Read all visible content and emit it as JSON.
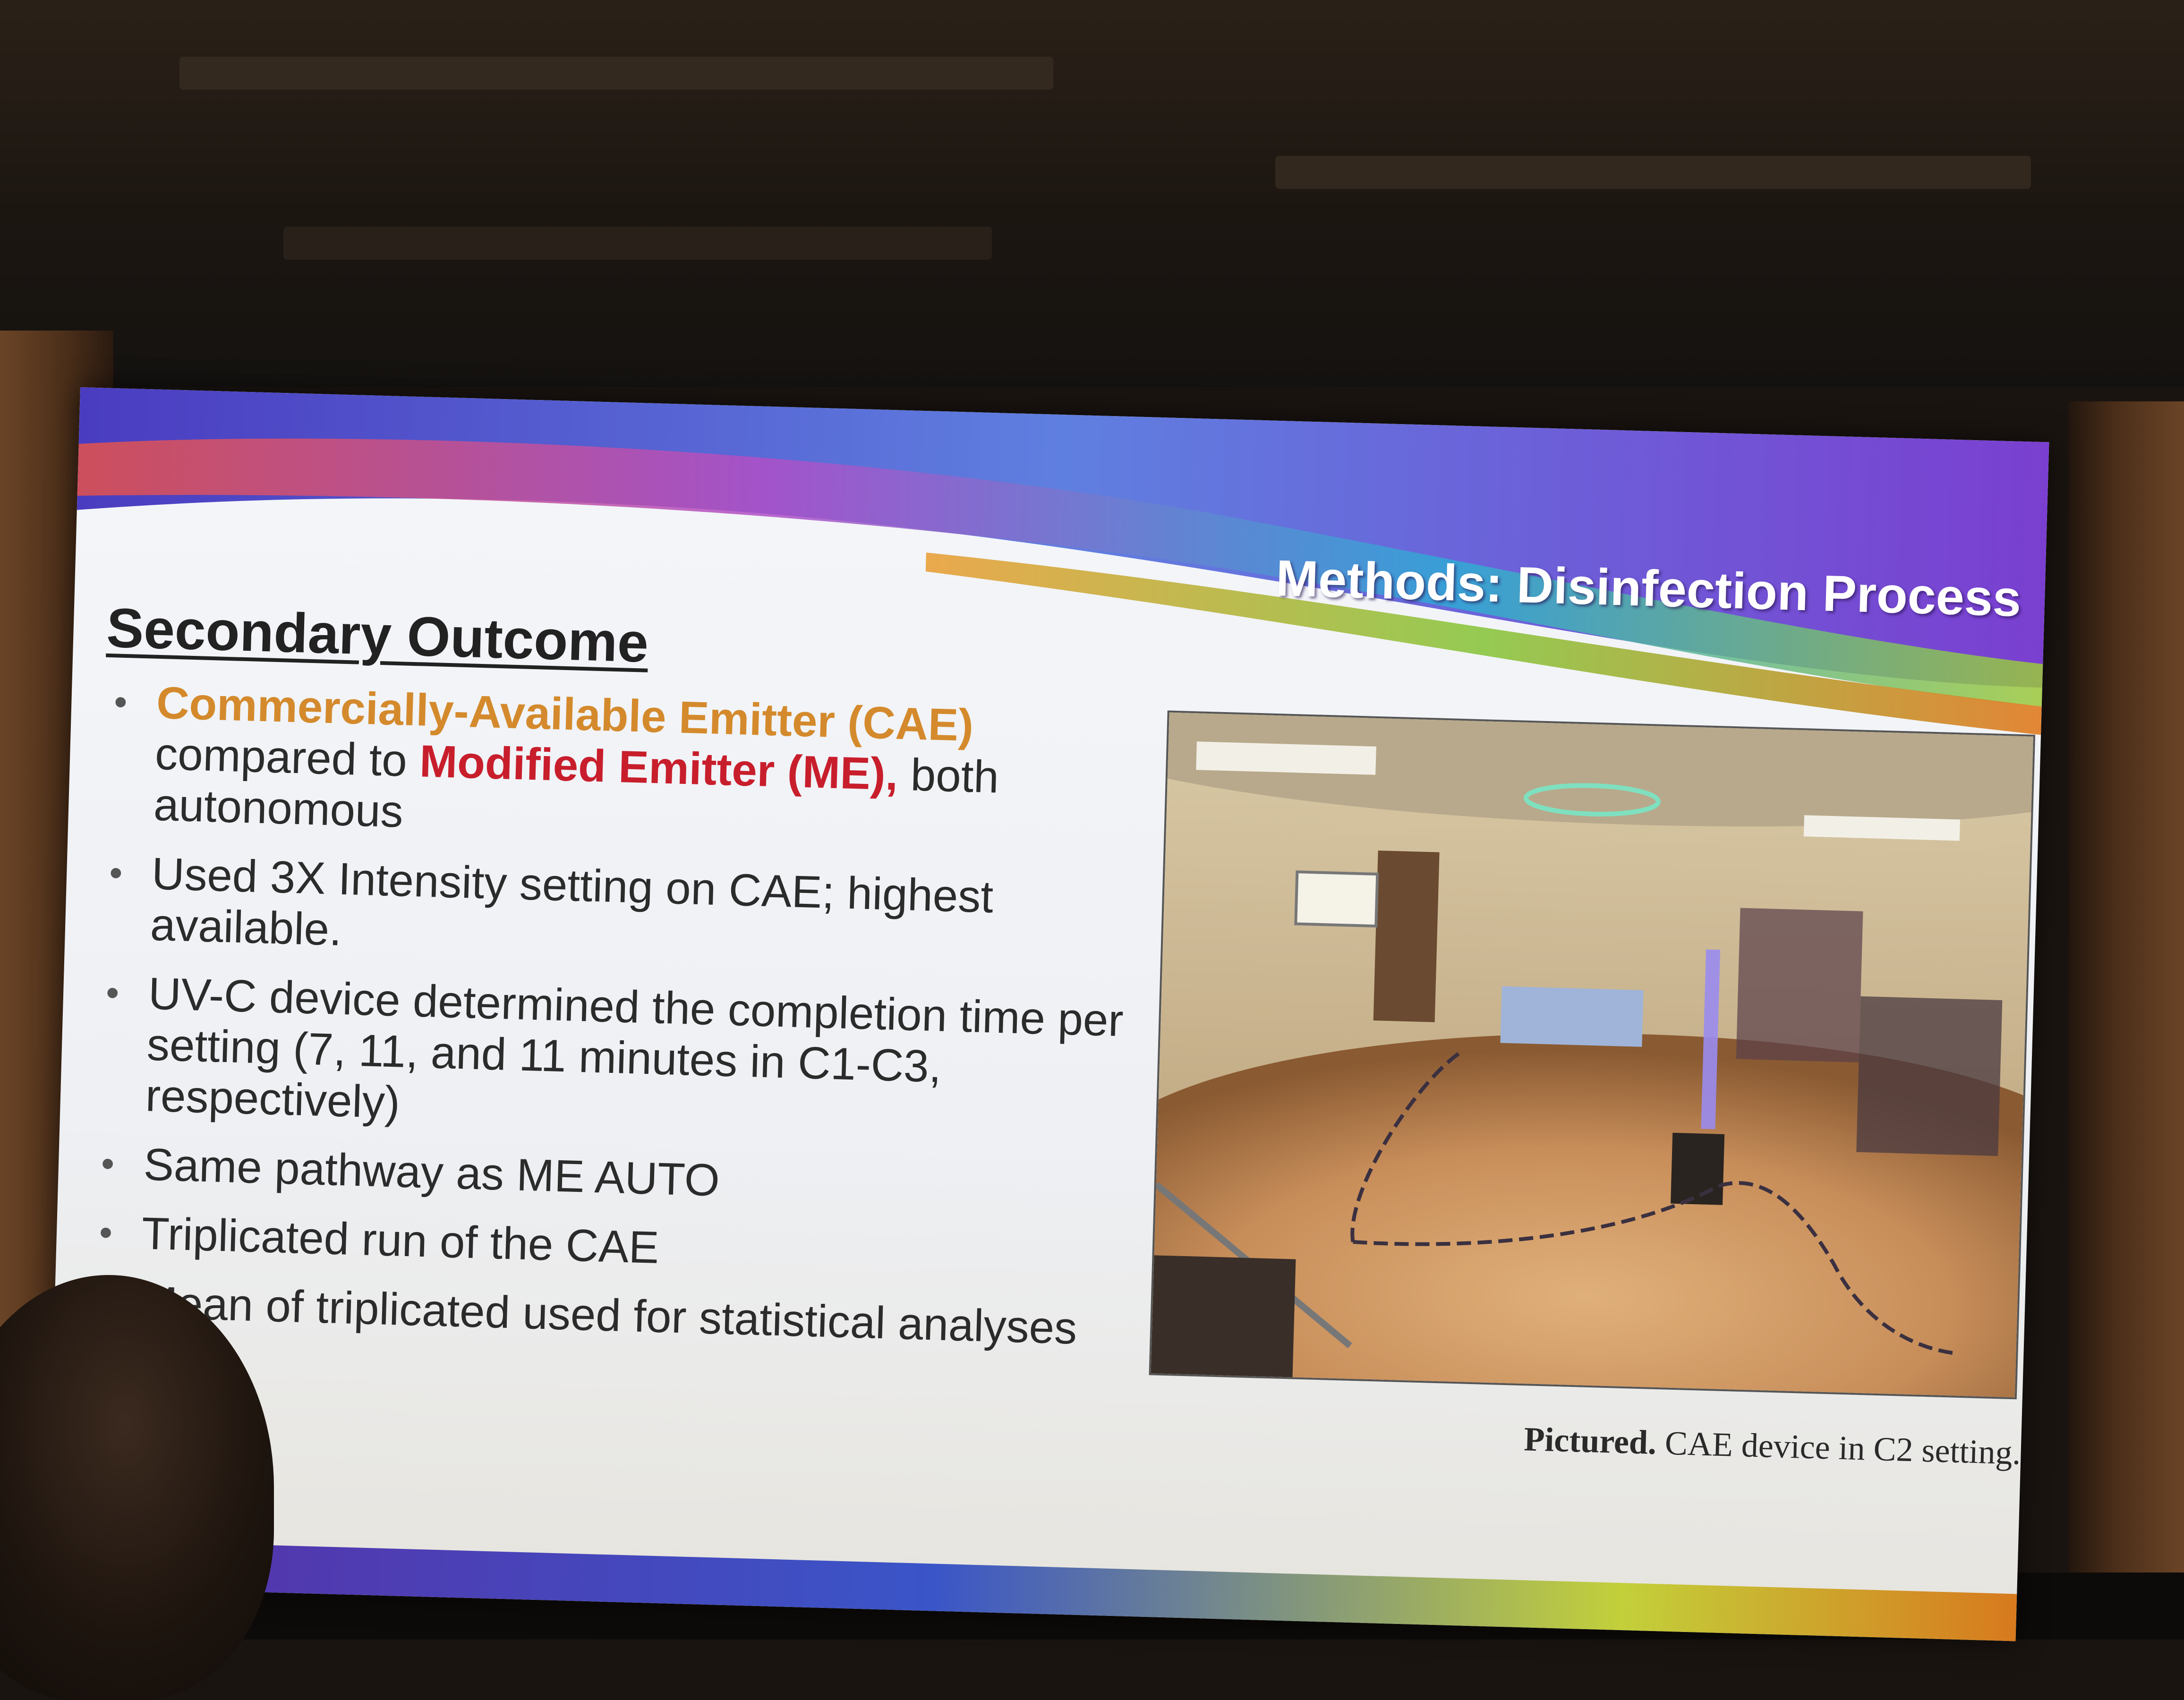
{
  "slide": {
    "title": "Methods: Disinfection Process",
    "section_heading": "Secondary Outcome",
    "bullets": [
      {
        "cae_term": "Commercially-Available Emitter (CAE)",
        "text_mid": " compared to ",
        "me_term": "Modified Emitter (ME),",
        "text_end": " both autonomous"
      },
      {
        "text": "Used 3X Intensity setting on CAE; highest available."
      },
      {
        "text": "UV-C device determined the completion time per setting (7, 11, and 11 minutes in C1-C3, respectively)"
      },
      {
        "text": "Same pathway as ME AUTO"
      },
      {
        "text": "Triplicated run of the CAE"
      },
      {
        "text": "Mean of triplicated used for statistical analyses"
      }
    ],
    "caption_bold": "Pictured.",
    "caption_rest": " CAE device in C2 setting.",
    "colors": {
      "cae_highlight": "#d48a2c",
      "me_highlight": "#c81e2c",
      "title_text": "#ffffff",
      "swoosh_purple": "#6a3fc0",
      "swoosh_blue": "#2f7fd6",
      "swoosh_green": "#9cc83a",
      "swoosh_orange": "#e07a20"
    }
  },
  "photo": {
    "description_icon": "operating-room-photo"
  }
}
